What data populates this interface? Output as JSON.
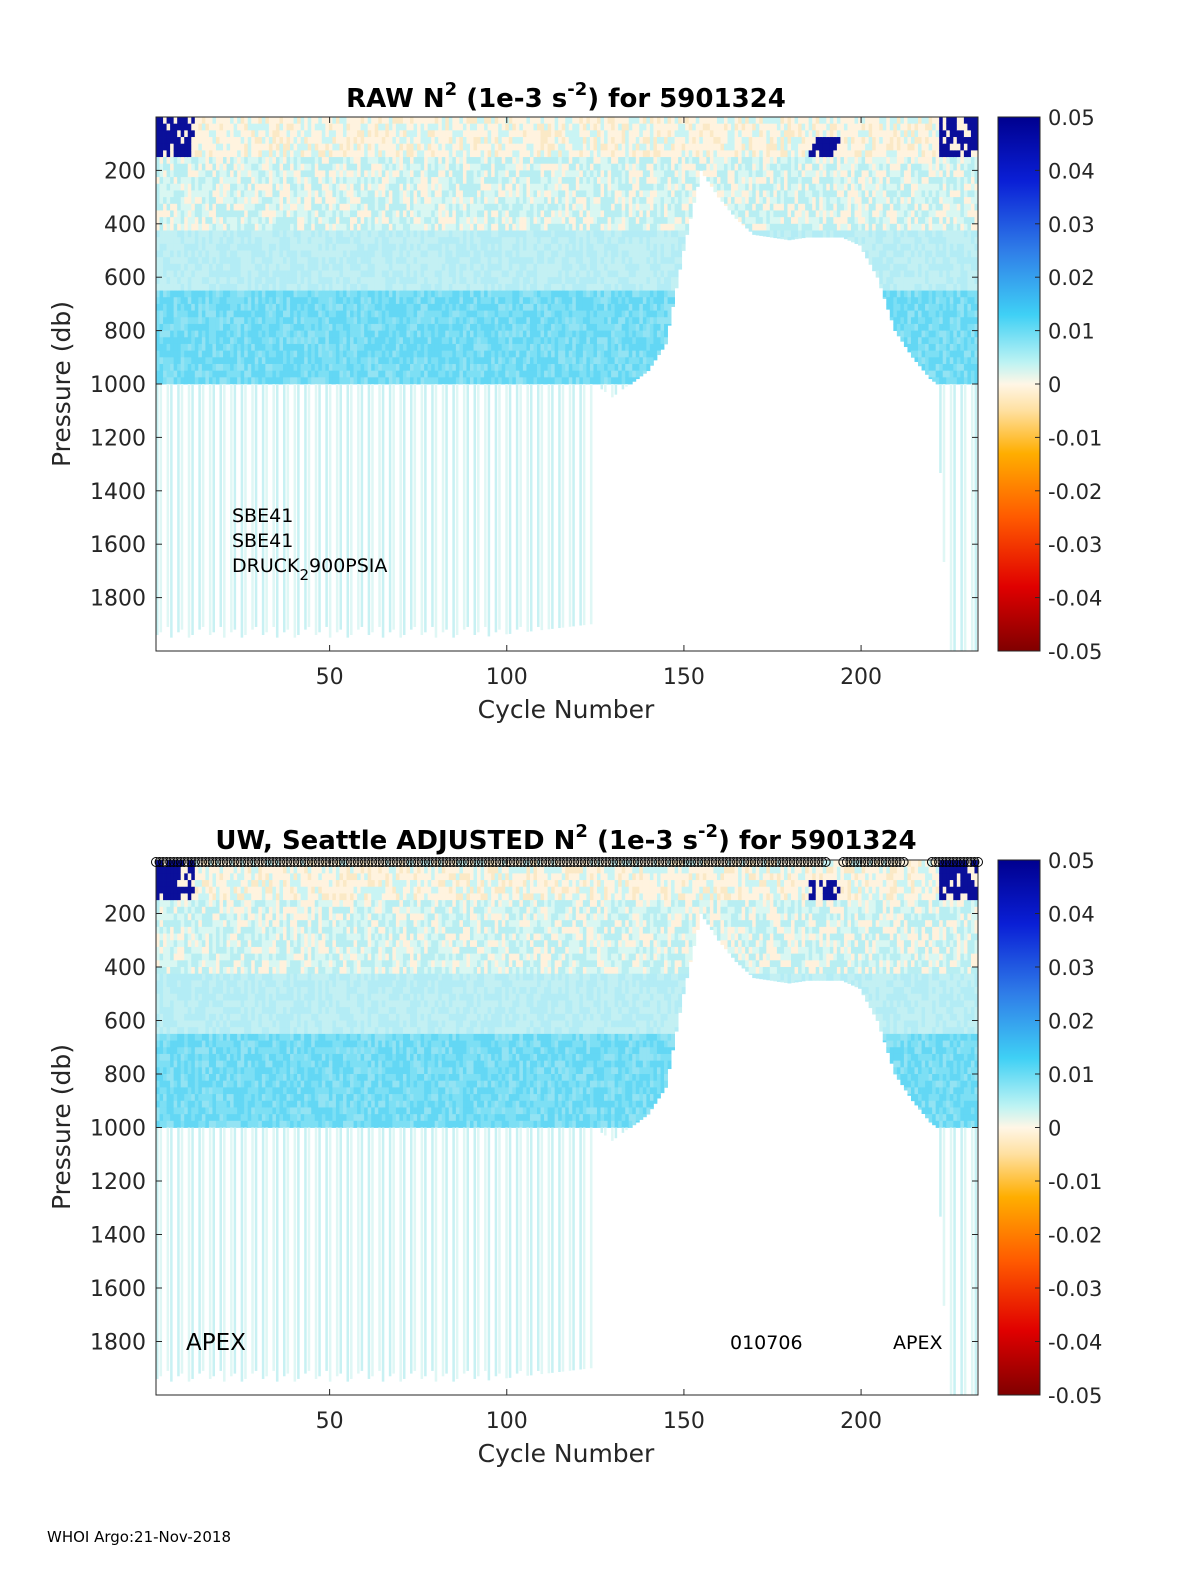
{
  "chart_data": [
    {
      "type": "heatmap",
      "title_parts": [
        "RAW N",
        "2",
        " (1e-3 s",
        "-2",
        ") for 5901324"
      ],
      "xlabel": "Cycle Number",
      "ylabel": "Pressure (db)",
      "xlim": [
        1,
        233
      ],
      "ylim": [
        0,
        2000
      ],
      "x_ticks": [
        50,
        100,
        150,
        200
      ],
      "y_ticks": [
        200,
        400,
        600,
        800,
        1000,
        1200,
        1400,
        1600,
        1800
      ],
      "colorbar": {
        "range": [
          -0.05,
          0.05
        ],
        "ticks": [
          "0.05",
          "0.04",
          "0.03",
          "0.02",
          "0.01",
          "0",
          "-0.01",
          "-0.02",
          "-0.03",
          "-0.04",
          "-0.05"
        ]
      },
      "annotations": [
        "SBE41",
        "SBE41",
        "DRUCK",
        "2",
        "900PSIA"
      ],
      "profile_max_pressure": [
        [
          1,
          2000
        ],
        [
          20,
          2000
        ],
        [
          60,
          2000
        ],
        [
          124,
          1900
        ],
        [
          125,
          1000
        ],
        [
          130,
          1050
        ],
        [
          140,
          950
        ],
        [
          145,
          850
        ],
        [
          150,
          500
        ],
        [
          155,
          200
        ],
        [
          160,
          300
        ],
        [
          165,
          380
        ],
        [
          170,
          440
        ],
        [
          175,
          450
        ],
        [
          180,
          460
        ],
        [
          185,
          450
        ],
        [
          195,
          450
        ],
        [
          200,
          480
        ],
        [
          205,
          600
        ],
        [
          210,
          800
        ],
        [
          215,
          900
        ],
        [
          220,
          980
        ],
        [
          222,
          1000
        ],
        [
          225,
          2000
        ],
        [
          233,
          2000
        ]
      ]
    },
    {
      "type": "heatmap",
      "title_parts": [
        "UW, Seattle  ADJUSTED N",
        "2",
        " (1e-3 s",
        "-2",
        ") for 5901324"
      ],
      "xlabel": "Cycle Number",
      "ylabel": "Pressure (db)",
      "xlim": [
        1,
        233
      ],
      "ylim": [
        0,
        2000
      ],
      "x_ticks": [
        50,
        100,
        150,
        200
      ],
      "y_ticks": [
        200,
        400,
        600,
        800,
        1000,
        1200,
        1400,
        1600,
        1800
      ],
      "colorbar": {
        "range": [
          -0.05,
          0.05
        ],
        "ticks": [
          "0.05",
          "0.04",
          "0.03",
          "0.02",
          "0.01",
          "0",
          "-0.01",
          "-0.02",
          "-0.03",
          "-0.04",
          "-0.05"
        ]
      },
      "annotations": [
        "APEX",
        "010706",
        "APEX"
      ],
      "qc_marker_cycles": "1-190, 195-212, 220-233",
      "profile_max_pressure": [
        [
          1,
          2000
        ],
        [
          20,
          2000
        ],
        [
          60,
          2000
        ],
        [
          124,
          1900
        ],
        [
          125,
          1000
        ],
        [
          130,
          1050
        ],
        [
          140,
          950
        ],
        [
          145,
          850
        ],
        [
          150,
          500
        ],
        [
          155,
          200
        ],
        [
          160,
          300
        ],
        [
          165,
          380
        ],
        [
          170,
          440
        ],
        [
          175,
          450
        ],
        [
          180,
          460
        ],
        [
          185,
          450
        ],
        [
          195,
          450
        ],
        [
          200,
          480
        ],
        [
          205,
          600
        ],
        [
          210,
          800
        ],
        [
          215,
          900
        ],
        [
          220,
          980
        ],
        [
          222,
          1000
        ],
        [
          225,
          2000
        ],
        [
          233,
          2000
        ]
      ]
    }
  ],
  "footer": "WHOI Argo:21-Nov-2018"
}
